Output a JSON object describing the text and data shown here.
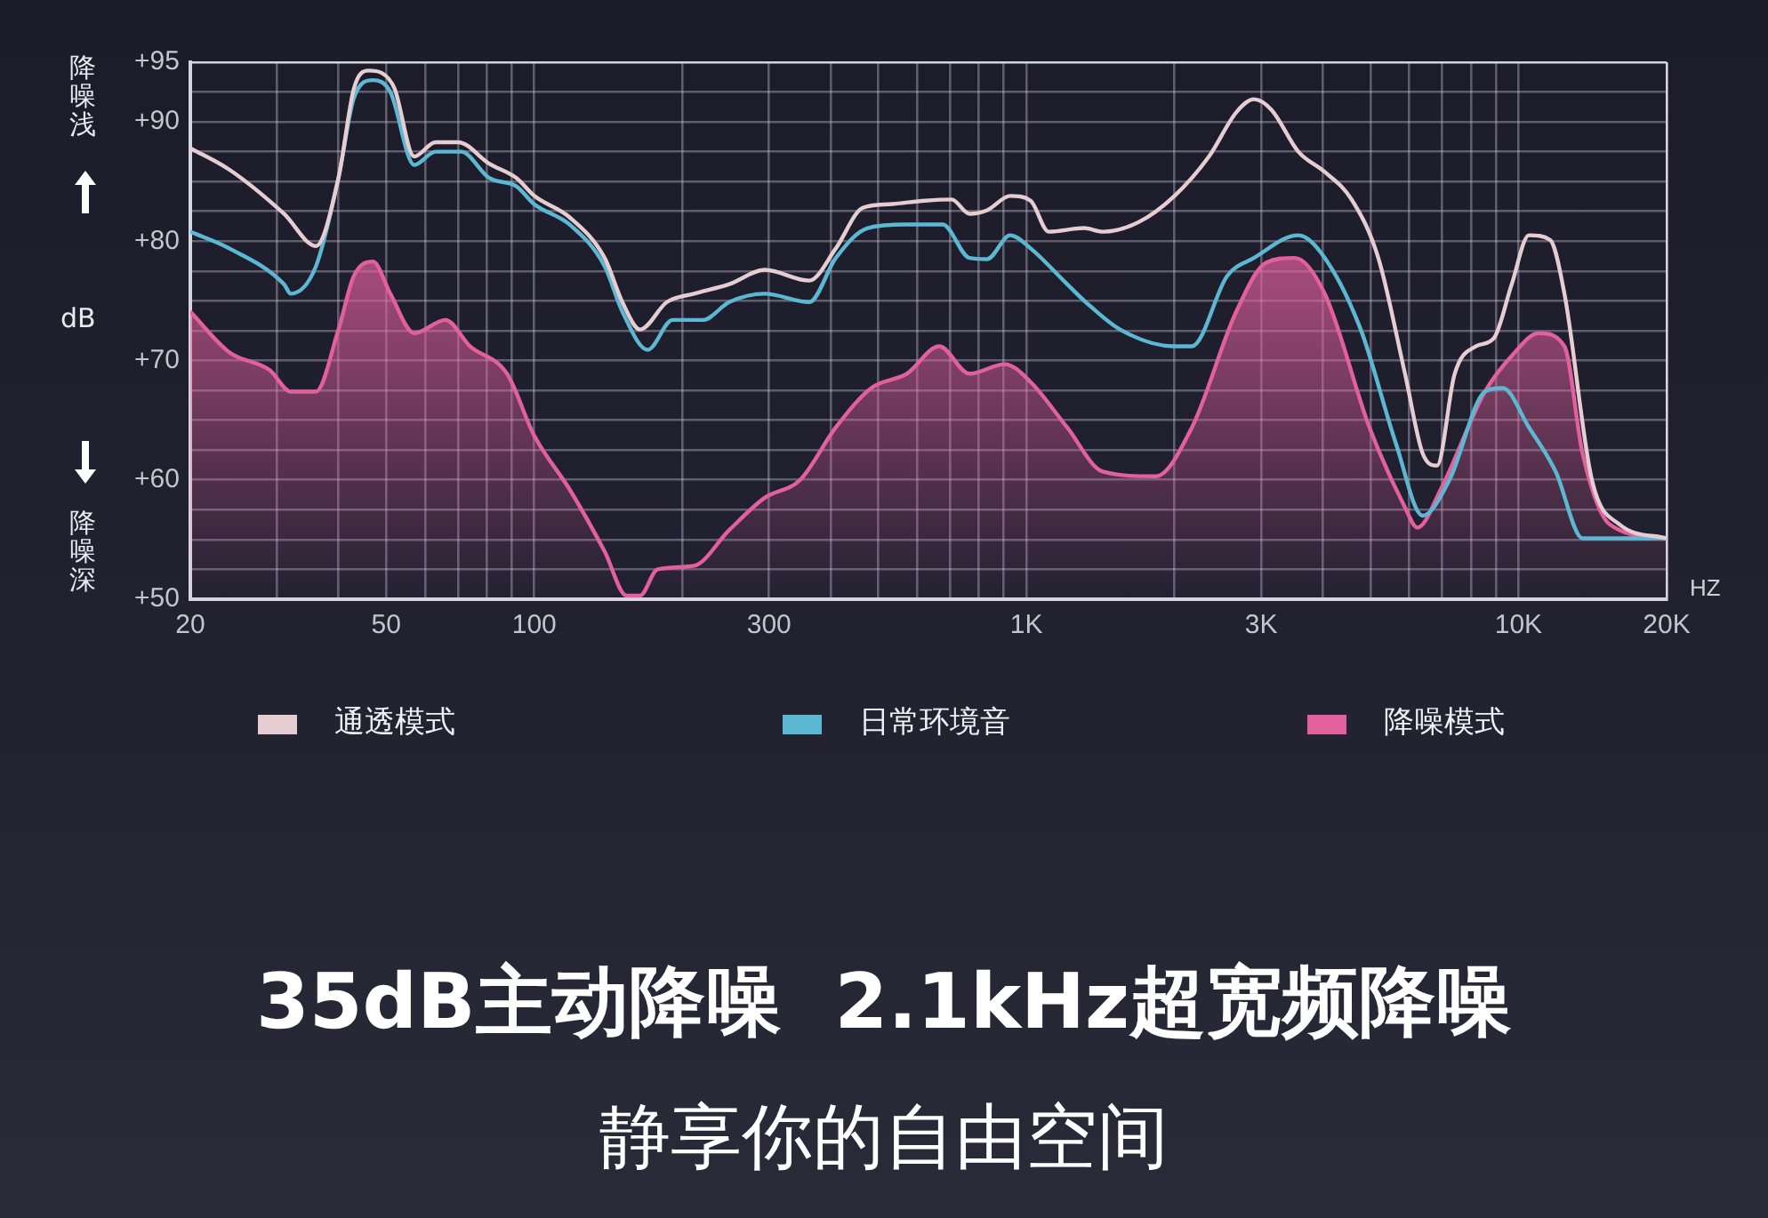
{
  "chart_data": {
    "type": "line",
    "title": "35dB主动降噪  2.1kHz超宽频降噪",
    "subtitle": "静享你的自由空间",
    "xlabel": "HZ",
    "ylabel": "dB",
    "annotations": [
      "降噪浅",
      "降噪深"
    ],
    "log": "x",
    "grid": true,
    "legend": "bottom",
    "marker": "none",
    "line_style": "solid",
    "xlim": [
      20,
      20000
    ],
    "xticks": [
      20,
      {
        "value": 30,
        "label": null
      },
      {
        "value": 40,
        "label": null
      },
      50,
      {
        "value": 60,
        "label": null
      },
      {
        "value": 70,
        "label": null
      },
      {
        "value": 80,
        "label": null
      },
      {
        "value": 90,
        "label": null
      },
      100,
      {
        "value": 200,
        "label": null
      },
      300,
      {
        "value": 400,
        "label": null
      },
      {
        "value": 500,
        "label": null
      },
      {
        "value": 600,
        "label": null
      },
      {
        "value": 700,
        "label": null
      },
      {
        "value": 800,
        "label": null
      },
      {
        "value": 900,
        "label": null
      },
      {
        "value": 1000,
        "label": "1K"
      },
      {
        "value": 2000,
        "label": null
      },
      {
        "value": 3000,
        "label": "3K"
      },
      {
        "value": 4000,
        "label": null
      },
      {
        "value": 5000,
        "label": null
      },
      {
        "value": 6000,
        "label": null
      },
      {
        "value": 7000,
        "label": null
      },
      {
        "value": 8000,
        "label": null
      },
      {
        "value": 9000,
        "label": null
      },
      {
        "value": 10000,
        "label": "10K"
      },
      {
        "value": 20000,
        "label": "20K"
      }
    ],
    "ylim": [
      50,
      95
    ],
    "yticks": [
      {
        "value": 50,
        "label": "+50"
      },
      {
        "value": 52.5,
        "label": null
      },
      {
        "value": 55,
        "label": null
      },
      {
        "value": 57.5,
        "label": null
      },
      {
        "value": 60,
        "label": "+60"
      },
      {
        "value": 62.5,
        "label": null
      },
      {
        "value": 65,
        "label": null
      },
      {
        "value": 67.5,
        "label": null
      },
      {
        "value": 70,
        "label": "+70"
      },
      {
        "value": 72.5,
        "label": null
      },
      {
        "value": 75,
        "label": null
      },
      {
        "value": 77.5,
        "label": null
      },
      {
        "value": 80,
        "label": "+80"
      },
      {
        "value": 82.5,
        "label": null
      },
      {
        "value": 85,
        "label": null
      },
      {
        "value": 87.5,
        "label": null
      },
      {
        "value": 90,
        "label": "+90"
      },
      {
        "value": 92.5,
        "label": null
      },
      {
        "value": 95,
        "label": "+95"
      }
    ],
    "series": [
      {
        "name": "通透模式",
        "type": "line",
        "color": "#e6cdd2",
        "x": [
          20,
          24,
          31,
          36,
          40,
          43,
          46,
          49,
          52,
          57,
          63,
          70,
          81,
          92,
          100,
          118,
          139,
          151,
          164,
          186,
          211,
          249,
          294,
          362,
          410,
          465,
          526,
          622,
          705,
          766,
          832,
          927,
          1020,
          1110,
          1310,
          1430,
          1690,
          2000,
          2350,
          2670,
          2900,
          3150,
          3570,
          4040,
          4580,
          5190,
          5880,
          6390,
          6830,
          7420,
          8200,
          8920,
          9690,
          10500,
          11600,
          12400,
          14100,
          16000,
          20000
        ],
        "values": [
          87.8,
          86,
          82.3,
          79.6,
          85.3,
          92.8,
          94.3,
          94.1,
          92.8,
          87.1,
          88.3,
          88.3,
          86.5,
          85.3,
          83.8,
          82,
          78.6,
          74.9,
          72.6,
          74.9,
          75.6,
          76.4,
          77.6,
          76.7,
          79.4,
          82.8,
          83.1,
          83.4,
          83.5,
          82.3,
          82.6,
          83.8,
          83.4,
          80.8,
          81.1,
          80.8,
          81.6,
          83.8,
          87.1,
          90.8,
          91.9,
          91,
          87.5,
          85.8,
          83.5,
          78.6,
          68.9,
          62.2,
          61.2,
          68.9,
          71.2,
          71.9,
          76.4,
          80.5,
          80.1,
          75.6,
          60,
          56.3,
          55.1
        ]
      },
      {
        "name": "日常环境音",
        "type": "line",
        "color": "#5cb8d2",
        "x": [
          20,
          24,
          31,
          32,
          36,
          40,
          43,
          47,
          51,
          57,
          63,
          71,
          81,
          92,
          100,
          118,
          139,
          151,
          170,
          191,
          220,
          249,
          294,
          362,
          410,
          476,
          572,
          676,
          766,
          832,
          927,
          1020,
          1210,
          1320,
          1550,
          1990,
          2170,
          2560,
          2900,
          3570,
          4040,
          4780,
          5640,
          6390,
          7240,
          8550,
          9290,
          10500,
          11900,
          13500,
          16000,
          20000
        ],
        "values": [
          80.8,
          79.4,
          76.4,
          75.6,
          77.9,
          85.3,
          92,
          93.5,
          92.5,
          86.4,
          87.5,
          87.5,
          85.3,
          84.6,
          83.1,
          81.4,
          77.9,
          74.1,
          70.9,
          73.4,
          73.4,
          74.9,
          75.6,
          74.9,
          78.6,
          81.1,
          81.4,
          81.4,
          78.6,
          78.5,
          80.5,
          79.4,
          76.4,
          74.9,
          72.6,
          71.2,
          71.2,
          77.1,
          78.6,
          80.5,
          78.6,
          72.6,
          63,
          57,
          60,
          67.4,
          67.7,
          64.4,
          60.7,
          55.1,
          55.1,
          55.1
        ]
      },
      {
        "name": "降噪模式",
        "type": "area",
        "color": "#e2609c",
        "x": [
          20,
          24,
          29,
          32,
          36,
          40,
          43,
          47,
          51,
          57,
          66,
          74,
          88,
          100,
          118,
          139,
          154,
          164,
          178,
          211,
          249,
          294,
          347,
          410,
          484,
          572,
          665,
          766,
          904,
          1020,
          1210,
          1430,
          1830,
          2170,
          2670,
          3070,
          3510,
          4040,
          4980,
          5880,
          6230,
          6950,
          8550,
          9690,
          11000,
          12400,
          13500,
          15300,
          20000
        ],
        "values": [
          74.1,
          70.7,
          69.2,
          67.4,
          67.4,
          72.6,
          77.1,
          78.3,
          75.6,
          72.3,
          73.4,
          71.2,
          68.9,
          63.7,
          59.2,
          54,
          50.3,
          50.3,
          52.5,
          52.8,
          55.8,
          58.5,
          60,
          64.4,
          67.7,
          68.9,
          71.2,
          68.9,
          69.7,
          68.2,
          64.4,
          60.7,
          60.3,
          64.4,
          74.1,
          78.2,
          78.6,
          75.6,
          64.4,
          57.7,
          56,
          59.2,
          67.4,
          70.4,
          72.3,
          71.2,
          62.2,
          56.3,
          55.1
        ]
      }
    ]
  }
}
